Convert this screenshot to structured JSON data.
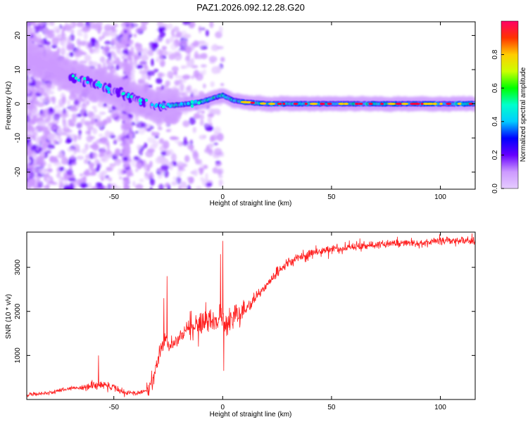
{
  "figure": {
    "title": "PAZ1.2026.092.12.28.G20"
  },
  "chart_data": [
    {
      "type": "heatmap",
      "xlabel": "Height of straight line (km)",
      "ylabel": "Frequency (Hz)",
      "xlim": [
        -90,
        116
      ],
      "ylim": [
        -25,
        24
      ],
      "xticks": [
        -50,
        0,
        50,
        100
      ],
      "yticks": [
        -20,
        -10,
        0,
        10,
        20
      ],
      "xtick_labels": [
        "-50",
        "0",
        "50",
        "100"
      ],
      "ytick_labels": [
        "-20",
        "-10",
        "0",
        "10",
        "20"
      ],
      "grid": false,
      "ridge": {
        "x": [
          -90,
          -80,
          -70,
          -60,
          -55,
          -50,
          -45,
          -40,
          -35,
          -30,
          -25,
          -20,
          -15,
          -10,
          -5,
          0,
          5,
          10,
          20,
          30,
          40,
          50,
          60,
          70,
          80,
          90,
          100,
          110,
          116
        ],
        "frequency": [
          14,
          11,
          8,
          6,
          5,
          4,
          2.5,
          1.5,
          0.5,
          -1,
          -0.5,
          -0.3,
          0,
          0.5,
          1.5,
          2.5,
          1,
          0.5,
          0,
          0,
          0,
          0,
          0,
          0,
          0,
          0,
          0,
          0,
          0
        ]
      },
      "colorbar": {
        "label": "Normalized spectral amplitude",
        "range": [
          0,
          1
        ],
        "ticks": [
          0.0,
          0.2,
          0.4,
          0.6,
          0.8
        ],
        "tick_labels": [
          "0.0",
          "0.2",
          "0.4",
          "0.6",
          "0.8"
        ],
        "colormap": [
          "#e6ccff",
          "#cc99ff",
          "#6600ff",
          "#0000ff",
          "#00ccff",
          "#00ffcc",
          "#00ff00",
          "#ccff00",
          "#ffcc00",
          "#ff3300",
          "#ff0066"
        ]
      },
      "ridge_color": "#ff0040"
    },
    {
      "type": "line",
      "xlabel": "Height of straight line (km)",
      "ylabel": "SNR (10 * v/v)",
      "xlim": [
        -90,
        116
      ],
      "ylim": [
        0,
        3800
      ],
      "xticks": [
        -50,
        0,
        50,
        100
      ],
      "yticks": [
        1000,
        2000,
        3000
      ],
      "xtick_labels": [
        "-50",
        "0",
        "50",
        "100"
      ],
      "ytick_labels": [
        "1000",
        "2000",
        "3000"
      ],
      "grid": false,
      "series": [
        {
          "color": "#ff2020",
          "x": [
            -90,
            -80,
            -70,
            -60,
            -55,
            -50,
            -45,
            -40,
            -35,
            -32,
            -30,
            -28,
            -26,
            -24,
            -22,
            -20,
            -15,
            -10,
            -5,
            0,
            2,
            5,
            10,
            15,
            20,
            25,
            30,
            35,
            40,
            45,
            50,
            55,
            60,
            65,
            70,
            80,
            90,
            100,
            110,
            116
          ],
          "values": [
            100,
            150,
            250,
            300,
            350,
            280,
            150,
            150,
            200,
            400,
            900,
            1200,
            1400,
            1200,
            1300,
            1400,
            1700,
            1700,
            1800,
            1900,
            1700,
            1900,
            2000,
            2300,
            2600,
            2900,
            3100,
            3200,
            3300,
            3350,
            3400,
            3450,
            3450,
            3500,
            3500,
            3550,
            3550,
            3600,
            3600,
            3600
          ],
          "spikes": [
            {
              "x": -25.5,
              "value": 2800
            },
            {
              "x": -27,
              "value": 2300
            },
            {
              "x": -57,
              "value": 1000
            },
            {
              "x": 0,
              "value": 3600
            },
            {
              "x": -1,
              "value": 3300
            },
            {
              "x": 0.5,
              "value": 650
            }
          ]
        }
      ]
    }
  ]
}
